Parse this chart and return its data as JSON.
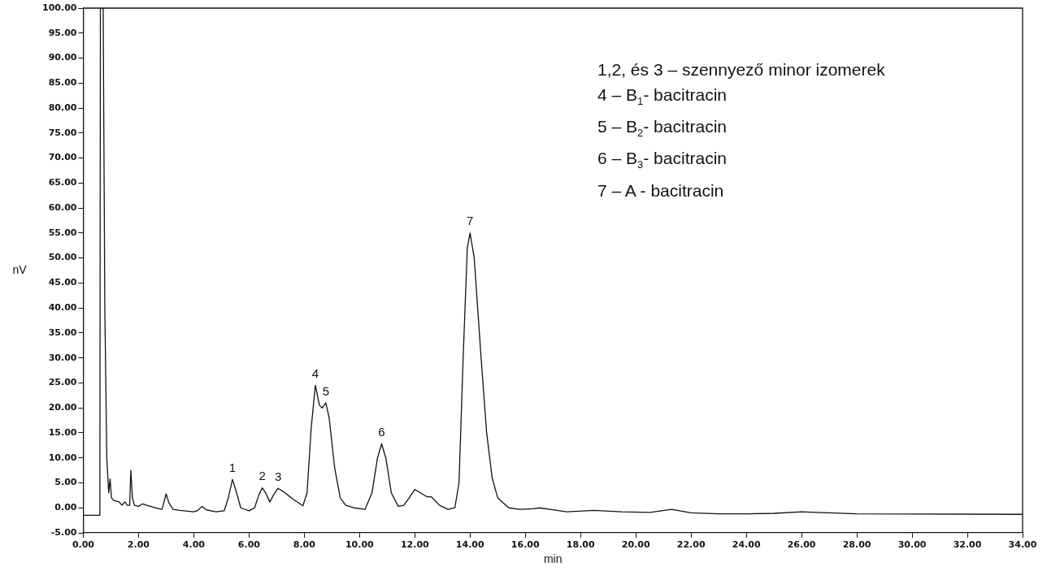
{
  "chart_data": {
    "type": "line",
    "xlabel": "min",
    "ylabel": "nV",
    "series": [
      {
        "color": "#111111",
        "x": [
          0.0,
          0.6,
          0.62,
          0.72,
          0.78,
          0.85,
          0.92,
          0.97,
          1.02,
          1.1,
          1.3,
          1.4,
          1.5,
          1.6,
          1.68,
          1.72,
          1.78,
          1.85,
          2.0,
          2.15,
          2.3,
          2.6,
          2.85,
          3.0,
          3.1,
          3.25,
          3.5,
          4.0,
          4.15,
          4.3,
          4.45,
          4.8,
          5.1,
          5.25,
          5.4,
          5.55,
          5.7,
          6.0,
          6.2,
          6.35,
          6.48,
          6.6,
          6.75,
          6.9,
          7.05,
          7.3,
          7.6,
          7.95,
          8.1,
          8.25,
          8.4,
          8.55,
          8.65,
          8.78,
          8.9,
          9.1,
          9.3,
          9.5,
          9.8,
          10.2,
          10.45,
          10.65,
          10.8,
          10.95,
          11.15,
          11.4,
          11.6,
          11.8,
          12.0,
          12.2,
          12.45,
          12.6,
          12.9,
          13.2,
          13.45,
          13.6,
          13.75,
          13.9,
          14.0,
          14.15,
          14.4,
          14.6,
          14.8,
          15.0,
          15.4,
          15.8,
          16.3,
          16.5,
          16.9,
          17.5,
          18.5,
          19.5,
          20.5,
          21.3,
          22.0,
          23.0,
          24.0,
          25.0,
          26.0,
          27.0,
          28.0,
          34.0
        ],
        "values": [
          -1.5,
          -1.5,
          100,
          100,
          40,
          10,
          3,
          5.8,
          2,
          1.5,
          1.2,
          0.5,
          1.2,
          0.5,
          0.5,
          7.5,
          2,
          0.5,
          0.3,
          0.8,
          0.5,
          0,
          -0.3,
          2.8,
          1,
          -0.3,
          -0.5,
          -0.8,
          -0.5,
          0.3,
          -0.4,
          -0.8,
          -0.6,
          2,
          5.7,
          3,
          0,
          -0.6,
          0,
          2.5,
          4,
          3,
          1.2,
          2.7,
          3.9,
          3,
          1.7,
          0.4,
          3,
          16,
          24.5,
          20.5,
          20,
          21,
          18,
          8,
          2,
          0.5,
          0,
          -0.3,
          3,
          10,
          12.8,
          10,
          3,
          0.3,
          0.5,
          2,
          3.7,
          3,
          2.2,
          2.2,
          0.5,
          -0.3,
          0,
          5,
          30,
          52,
          55,
          50,
          30,
          15,
          6,
          2,
          0,
          -0.3,
          -0.2,
          0,
          -0.3,
          -0.8,
          -0.5,
          -0.8,
          -0.9,
          -0.3,
          -1.0,
          -1.2,
          -1.2,
          -1.1,
          -0.8,
          -1.0,
          -1.2,
          -1.3
        ]
      }
    ],
    "xlim": [
      0,
      34
    ],
    "xticks": [
      {
        "value": 0,
        "label": "0.00"
      },
      {
        "value": 2,
        "label": "2.00"
      },
      {
        "value": 4,
        "label": "4.00"
      },
      {
        "value": 6,
        "label": "6.00"
      },
      {
        "value": 8,
        "label": "8.00"
      },
      {
        "value": 10,
        "label": "10.00"
      },
      {
        "value": 12,
        "label": "12.00"
      },
      {
        "value": 14,
        "label": "14.00"
      },
      {
        "value": 16,
        "label": "16.00"
      },
      {
        "value": 18,
        "label": "18.00"
      },
      {
        "value": 20,
        "label": "20.00"
      },
      {
        "value": 22,
        "label": "22.00"
      },
      {
        "value": 24,
        "label": "24.00"
      },
      {
        "value": 26,
        "label": "26.00"
      },
      {
        "value": 28,
        "label": "28.00"
      },
      {
        "value": 30,
        "label": "30.00"
      },
      {
        "value": 32,
        "label": "32.00"
      },
      {
        "value": 34,
        "label": "34.00"
      }
    ],
    "ylim": [
      -5,
      100
    ],
    "yticks": [
      {
        "value": -5,
        "label": "-5.00"
      },
      {
        "value": 0,
        "label": "0.00"
      },
      {
        "value": 5,
        "label": "5.00"
      },
      {
        "value": 10,
        "label": "10.00"
      },
      {
        "value": 15,
        "label": "15.00"
      },
      {
        "value": 20,
        "label": "20.00"
      },
      {
        "value": 25,
        "label": "25.00"
      },
      {
        "value": 30,
        "label": "30.00"
      },
      {
        "value": 35,
        "label": "35.00"
      },
      {
        "value": 40,
        "label": "40.00"
      },
      {
        "value": 45,
        "label": "45.00"
      },
      {
        "value": 50,
        "label": "50.00"
      },
      {
        "value": 55,
        "label": "55.00"
      },
      {
        "value": 60,
        "label": "60.00"
      },
      {
        "value": 65,
        "label": "65.00"
      },
      {
        "value": 70,
        "label": "70.00"
      },
      {
        "value": 75,
        "label": "75.00"
      },
      {
        "value": 80,
        "label": "80.00"
      },
      {
        "value": 85,
        "label": "85.00"
      },
      {
        "value": 90,
        "label": "90.00"
      },
      {
        "value": 95,
        "label": "95.00"
      },
      {
        "value": 100,
        "label": "100.00"
      }
    ],
    "grid": false,
    "legend": false,
    "marker": "none",
    "line_style": "solid",
    "annotations": [
      {
        "text": "1",
        "x": 5.4,
        "y": 5.7
      },
      {
        "text": "2",
        "x": 6.48,
        "y": 4
      },
      {
        "text": "3",
        "x": 7.05,
        "y": 3.9
      },
      {
        "text": "4",
        "x": 8.4,
        "y": 24.5
      },
      {
        "text": "5",
        "x": 8.78,
        "y": 21
      },
      {
        "text": "6",
        "x": 10.8,
        "y": 12.8
      },
      {
        "text": "7",
        "x": 14.0,
        "y": 55
      },
      "1,2, és 3 – szennyező minor izomerek",
      "4 – B$_{1}$- bacitracin",
      "5 – B$_{2}$- bacitracin",
      "6 – B$_{3}$- bacitracin",
      "7 – A - bacitracin"
    ]
  }
}
